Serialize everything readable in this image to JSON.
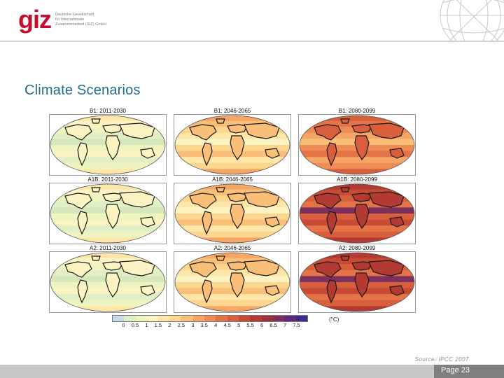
{
  "header": {
    "logo_mark": "giz",
    "logo_line1": "Deutsche Gesellschaft",
    "logo_line2": "für Internationale",
    "logo_line3": "Zusammenarbeit (GIZ) GmbH"
  },
  "slide": {
    "title": "Climate Scenarios"
  },
  "figure": {
    "panels": [
      {
        "label": "B1: 2011-2030",
        "warm": 0
      },
      {
        "label": "B1: 2046-2065",
        "warm": 1
      },
      {
        "label": "B1: 2080-2099",
        "warm": 2
      },
      {
        "label": "A1B: 2011-2030",
        "warm": 0
      },
      {
        "label": "A1B: 2046-2065",
        "warm": 1
      },
      {
        "label": "A1B: 2080-2099",
        "warm": 3
      },
      {
        "label": "A2: 2011-2030",
        "warm": 0
      },
      {
        "label": "A2: 2046-2065",
        "warm": 1
      },
      {
        "label": "A2: 2080-2099",
        "warm": 3
      }
    ],
    "colorbar": {
      "ticks": [
        "0",
        "0.5",
        "1",
        "1.5",
        "2",
        "2.5",
        "3",
        "3.5",
        "4",
        "4.5",
        "5",
        "5.5",
        "6",
        "6.5",
        "7",
        "7.5"
      ],
      "colors": [
        "#c8d9ee",
        "#dcefc2",
        "#eef4c0",
        "#fbf3c2",
        "#fde6a8",
        "#fcd58e",
        "#f9be78",
        "#f5a565",
        "#ee8c55",
        "#e47448",
        "#d85e3c",
        "#c84a35",
        "#b33a33",
        "#9a3040",
        "#7d2f5e",
        "#5c2c7c",
        "#3f2a8c"
      ],
      "unit": "(°C)"
    }
  },
  "source": "Source: IPCC 2007",
  "footer": {
    "page": "Page 23"
  }
}
